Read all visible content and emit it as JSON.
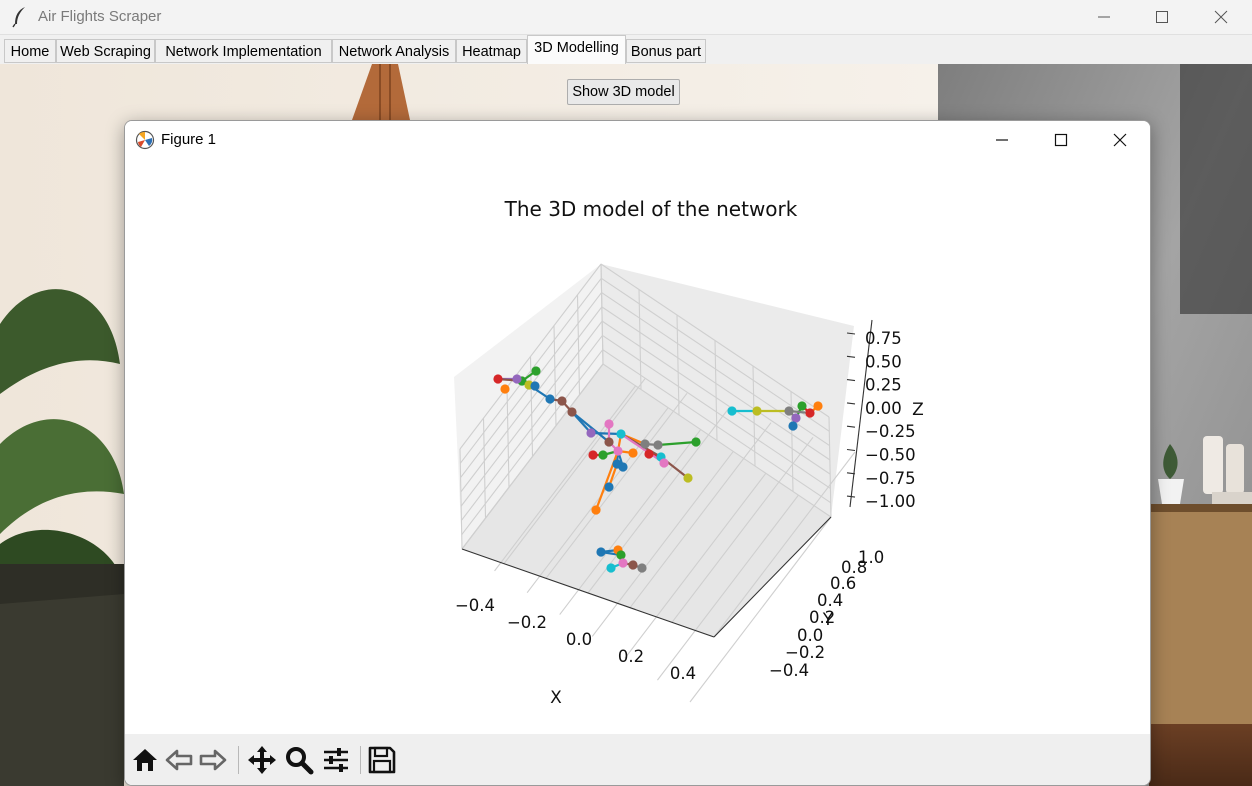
{
  "app": {
    "title": "Air Flights Scraper",
    "icon": "feather-icon"
  },
  "window_controls": [
    "minimize-icon",
    "maximize-icon",
    "close-icon"
  ],
  "tabs": [
    {
      "label": "Home",
      "active": false
    },
    {
      "label": "Web Scraping",
      "active": false
    },
    {
      "label": "Network Implementation",
      "active": false
    },
    {
      "label": "Network Analysis",
      "active": false
    },
    {
      "label": "Heatmap",
      "active": false
    },
    {
      "label": "3D Modelling",
      "active": true
    },
    {
      "label": "Bonus part",
      "active": false
    }
  ],
  "show_button": {
    "label": "Show 3D model"
  },
  "figure_window": {
    "title": "Figure 1",
    "icon": "matplotlib-icon",
    "toolbar": [
      "home-icon",
      "back-icon",
      "forward-icon",
      "pan-icon",
      "zoom-icon",
      "configure-icon",
      "save-icon"
    ]
  },
  "chart_data": {
    "type": "scatter",
    "title": "The 3D model of the network",
    "xlabel": "X",
    "ylabel": "Y",
    "zlabel": "Z",
    "x_ticks": [
      "−0.4",
      "−0.2",
      "0.0",
      "0.2",
      "0.4"
    ],
    "y_ticks": [
      "−0.4",
      "−0.2",
      "0.0",
      "0.2",
      "0.4",
      "0.6",
      "0.8",
      "1.0"
    ],
    "z_ticks": [
      "0.75",
      "0.50",
      "0.25",
      "0.00",
      "−0.25",
      "−0.50",
      "−0.75",
      "−1.00"
    ],
    "grid": true,
    "colors": [
      "#1f77b4",
      "#ff7f0e",
      "#2ca02c",
      "#d62728",
      "#9467bd",
      "#8c564b",
      "#e377c2",
      "#7f7f7f",
      "#bcbd22",
      "#17becf"
    ]
  }
}
